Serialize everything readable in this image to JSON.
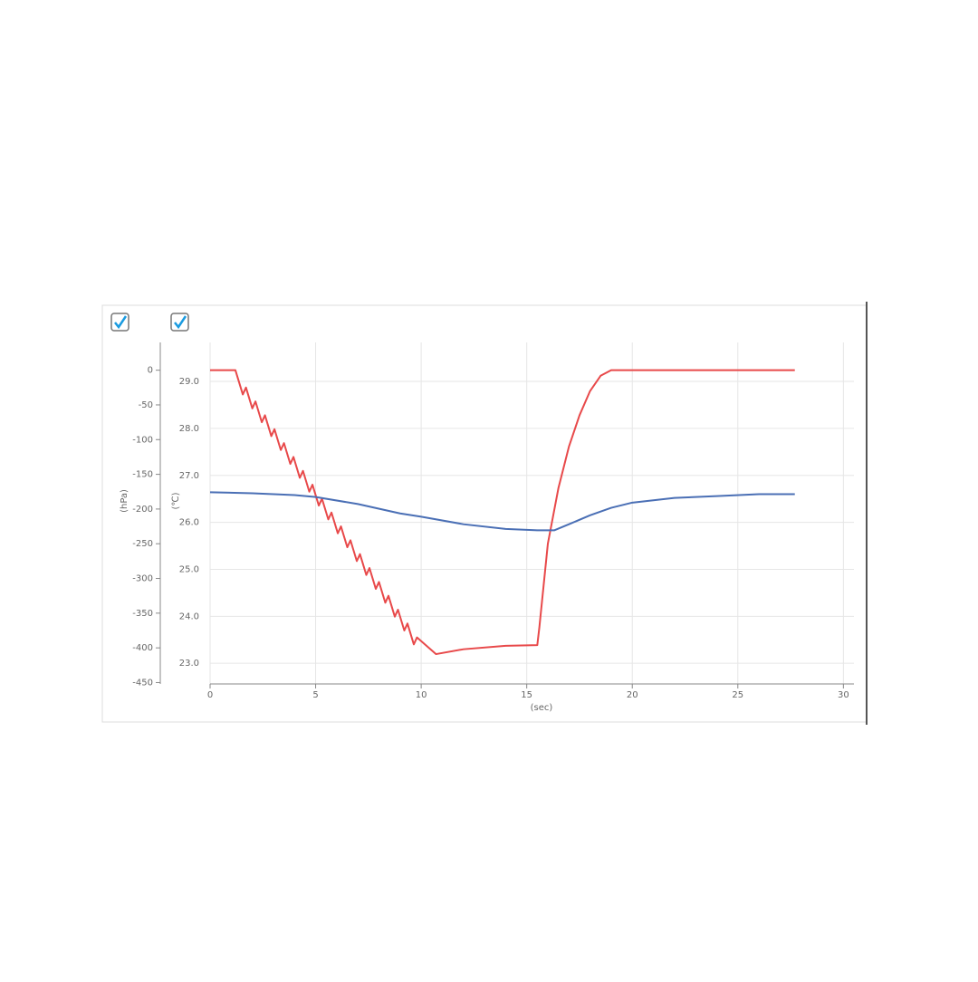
{
  "chart_data": {
    "type": "line",
    "x_label": "(sec)",
    "y_label": "(hPa)",
    "y2_label": "(℃)",
    "xlim": [
      0,
      30.5
    ],
    "xticks": [
      0,
      5,
      10,
      15,
      20,
      25,
      30
    ],
    "ylim": [
      -452,
      40
    ],
    "yticks": [
      0,
      -50,
      -100,
      -150,
      -200,
      -250,
      -300,
      -350,
      -400,
      -450
    ],
    "y2lim": [
      22.56,
      29.83
    ],
    "y2ticks": [
      {
        "value": 23,
        "label": "23.0"
      },
      {
        "value": 24,
        "label": "24.0"
      },
      {
        "value": 25,
        "label": "25.0"
      },
      {
        "value": 26,
        "label": "26.0"
      },
      {
        "value": 27,
        "label": "27.0"
      },
      {
        "value": 28,
        "label": "28.0"
      },
      {
        "value": 29,
        "label": "29.0"
      }
    ],
    "grid": true,
    "series": [
      {
        "color": "#e8494a",
        "x": [
          0,
          1.2,
          1.55,
          1.7,
          2.0,
          2.15,
          2.45,
          2.6,
          2.9,
          3.05,
          3.35,
          3.5,
          3.8,
          3.95,
          4.25,
          4.4,
          4.7,
          4.85,
          5.15,
          5.3,
          5.6,
          5.75,
          6.05,
          6.2,
          6.5,
          6.65,
          6.95,
          7.1,
          7.4,
          7.55,
          7.85,
          8.0,
          8.3,
          8.45,
          8.75,
          8.9,
          9.2,
          9.35,
          9.65,
          9.8,
          10.7,
          12,
          14,
          15.5,
          15.6,
          16.0,
          16.5,
          17,
          17.5,
          18,
          18.5,
          19,
          27.7
        ],
        "values": [
          0,
          0,
          -35,
          -25,
          -55,
          -45,
          -75,
          -65,
          -95,
          -85,
          -115,
          -105,
          -135,
          -125,
          -155,
          -145,
          -175,
          -165,
          -195,
          -185,
          -215,
          -205,
          -235,
          -225,
          -255,
          -245,
          -275,
          -265,
          -295,
          -285,
          -315,
          -305,
          -335,
          -325,
          -355,
          -345,
          -375,
          -365,
          -395,
          -385,
          -409,
          -402,
          -397,
          -396,
          -370,
          -250,
          -170,
          -110,
          -65,
          -30,
          -8,
          0,
          0
        ]
      },
      {
        "color": "#4a6fb5",
        "axis": "y2",
        "x": [
          0,
          2,
          4,
          5,
          7,
          9,
          10,
          12,
          14,
          15.5,
          16.3,
          17,
          18,
          19,
          20,
          22,
          24,
          26,
          27.7
        ],
        "values": [
          26.64,
          26.62,
          26.58,
          26.54,
          26.39,
          26.19,
          26.12,
          25.96,
          25.86,
          25.83,
          25.83,
          25.96,
          26.15,
          26.31,
          26.42,
          26.52,
          26.56,
          26.6,
          26.6
        ]
      }
    ]
  }
}
